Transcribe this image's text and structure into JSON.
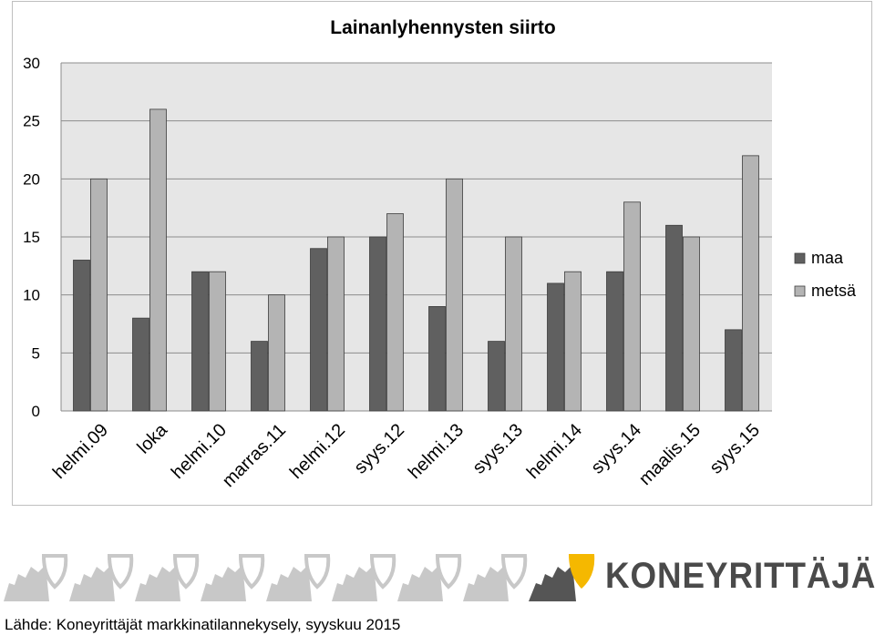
{
  "chart_data": {
    "type": "bar",
    "title": "Lainanlyhennysten siirto",
    "categories": [
      "helmi.09",
      "loka",
      "helmi.10",
      "marras.11",
      "helmi.12",
      "syys.12",
      "helmi.13",
      "syys.13",
      "helmi.14",
      "syys.14",
      "maalis.15",
      "syys.15"
    ],
    "series": [
      {
        "name": "maa",
        "values": [
          13,
          8,
          12,
          6,
          14,
          15,
          9,
          6,
          11,
          12,
          16,
          7
        ],
        "color": "#606060"
      },
      {
        "name": "metsä",
        "values": [
          20,
          26,
          12,
          10,
          15,
          17,
          20,
          15,
          12,
          18,
          15,
          22
        ],
        "color": "#b4b4b4"
      }
    ],
    "ylim": [
      0,
      30
    ],
    "yticks": [
      0,
      5,
      10,
      15,
      20,
      25,
      30
    ],
    "grid": true,
    "legend_position": "right",
    "plot_background": "#e6e6e6"
  },
  "footer": {
    "source": "Lähde: Koneyrittäjät markkinatilannekysely, syyskuu 2015",
    "brand": "KONEYRITTÄJÄT",
    "accent_color": "#f5b800",
    "logo_icon": "koneyrittajat-logo-icon",
    "pattern_icon": "gear-shield-pattern-icon"
  }
}
